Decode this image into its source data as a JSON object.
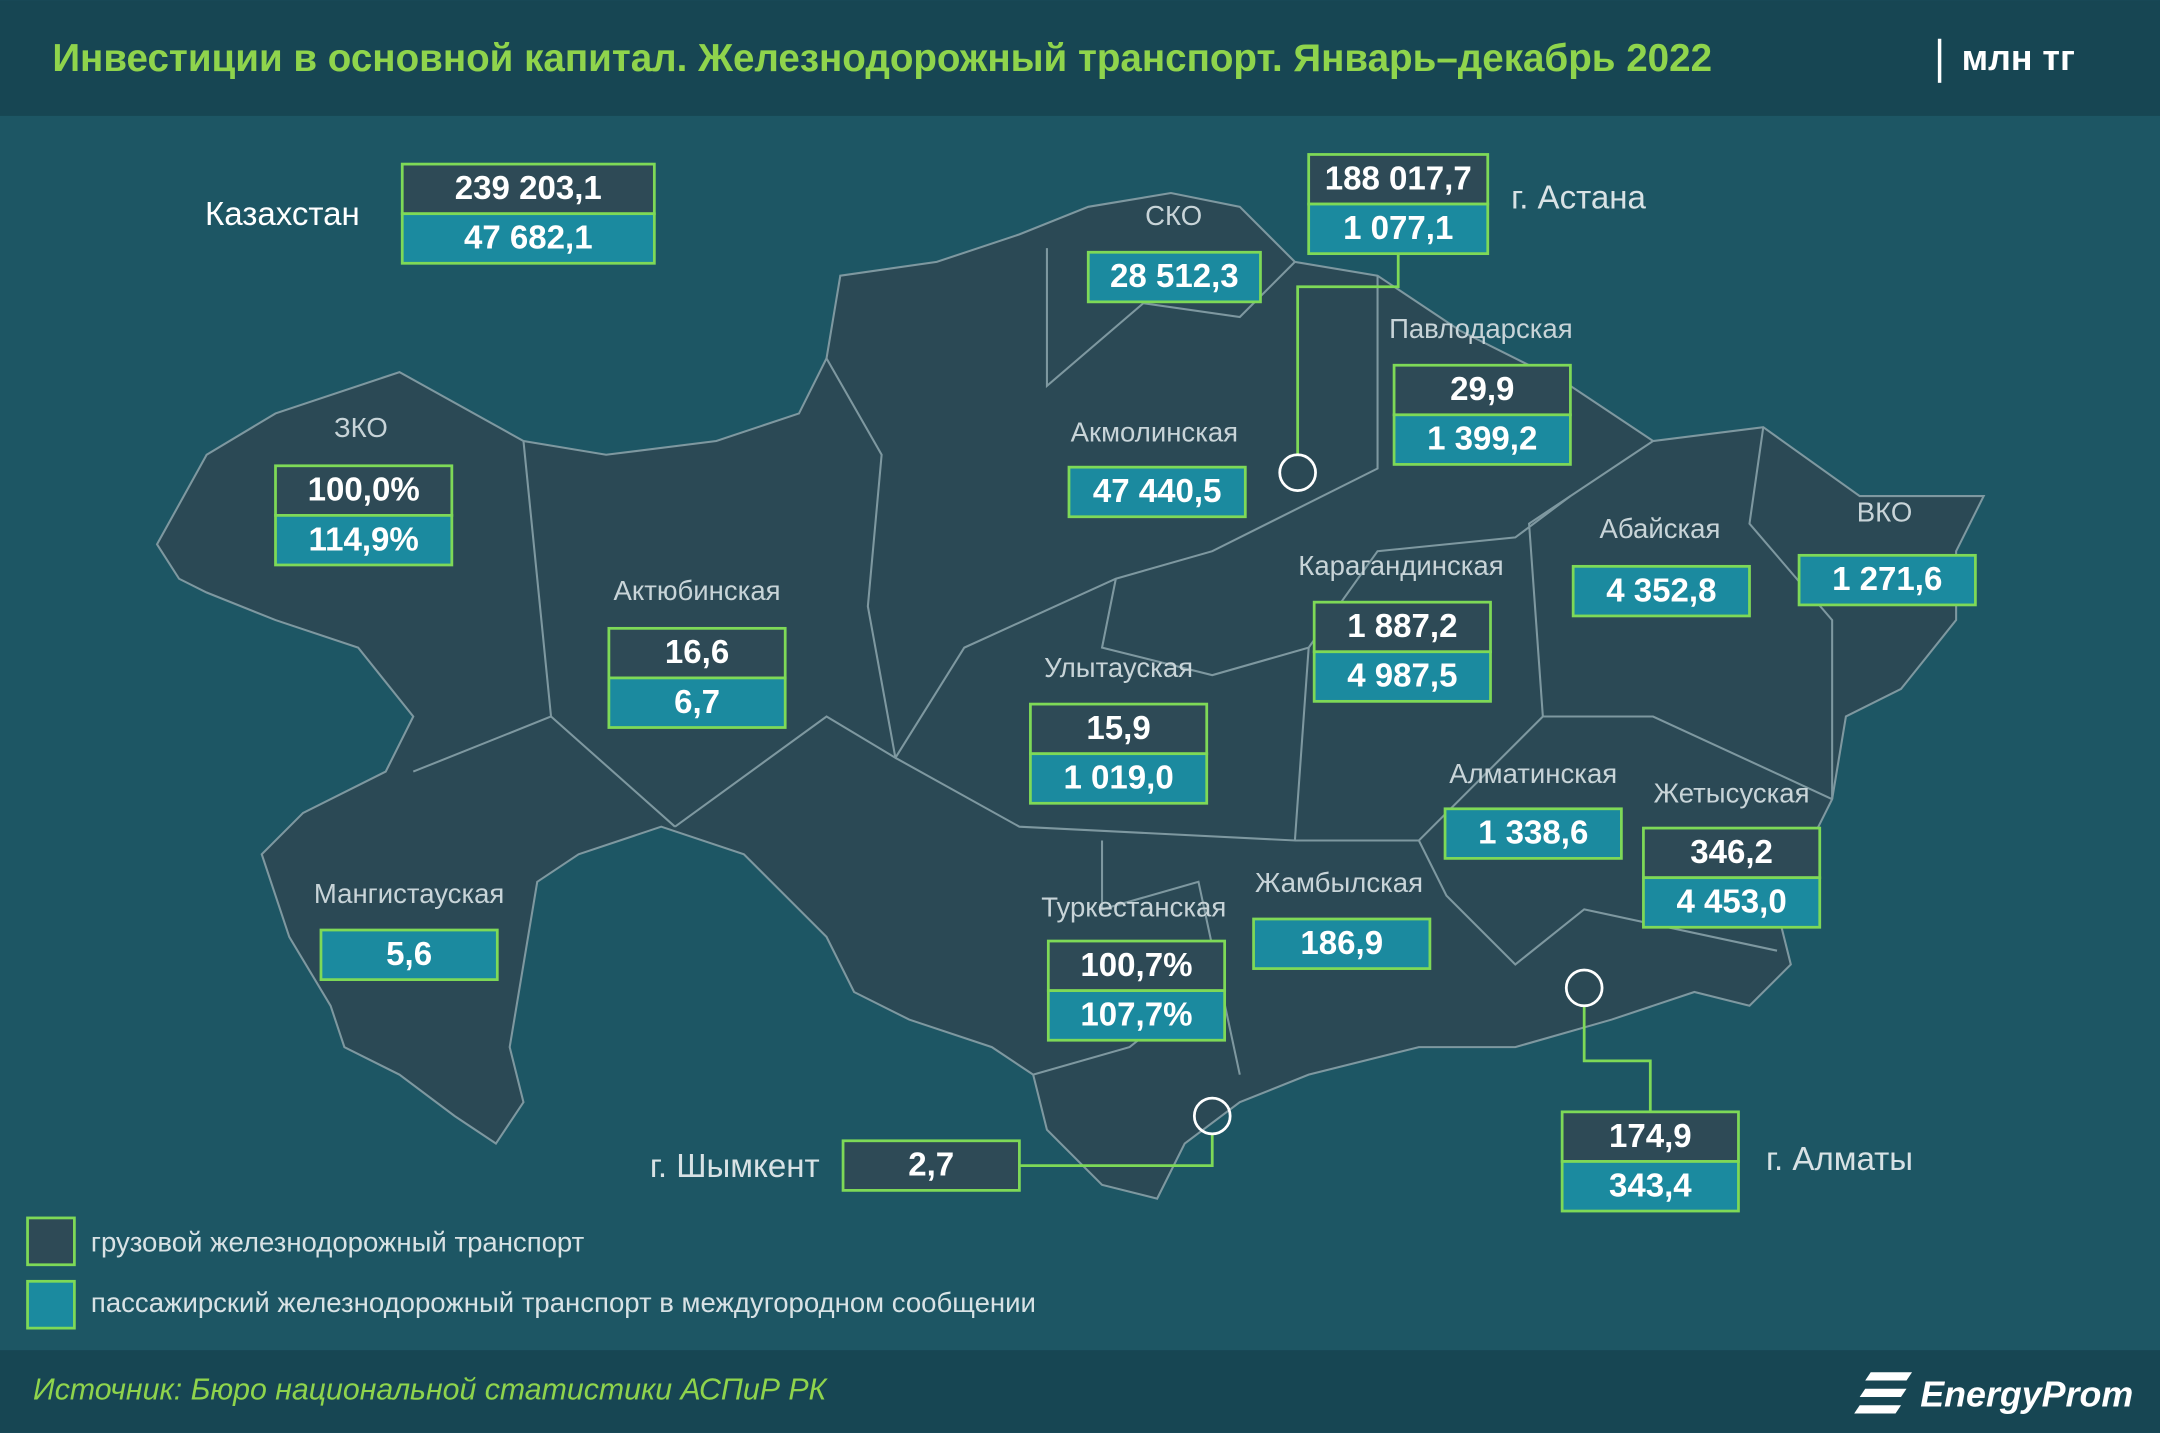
{
  "title": "Инвестиции в основной капитал. Железнодорожный транспорт. Январь–декабрь 2022",
  "unit": "млн тг",
  "regions": [
    {
      "name": "Казахстан",
      "cargo": "239 203,1",
      "passenger": "47 682,1"
    },
    {
      "name": "г. Астана",
      "cargo": "188 017,7",
      "passenger": "1 077,1"
    },
    {
      "name": "СКО",
      "passenger": "28 512,3"
    },
    {
      "name": "Павлодарская",
      "cargo": "29,9",
      "passenger": "1 399,2"
    },
    {
      "name": "ЗКО",
      "cargo": "100,0%",
      "passenger": "114,9%"
    },
    {
      "name": "Акмолинская",
      "passenger": "47 440,5"
    },
    {
      "name": "Актюбинская",
      "cargo": "16,6",
      "passenger": "6,7"
    },
    {
      "name": "Абайская",
      "passenger": "4 352,8"
    },
    {
      "name": "ВКО",
      "passenger": "1 271,6"
    },
    {
      "name": "Карагандинская",
      "cargo": "1 887,2",
      "passenger": "4 987,5"
    },
    {
      "name": "Улытауская",
      "cargo": "15,9",
      "passenger": "1 019,0"
    },
    {
      "name": "Алматинская",
      "passenger": "1 338,6"
    },
    {
      "name": "Жетысуская",
      "cargo": "346,2",
      "passenger": "4 453,0"
    },
    {
      "name": "Мангистауская",
      "passenger": "5,6"
    },
    {
      "name": "Жамбылская",
      "passenger": "186,9"
    },
    {
      "name": "Туркестанская",
      "cargo": "100,7%",
      "passenger": "107,7%"
    },
    {
      "name": "г. Шымкент",
      "cargo": "2,7"
    },
    {
      "name": "г. Алматы",
      "cargo": "174,9",
      "passenger": "343,4"
    }
  ],
  "legend": {
    "cargo": "грузовой железнодорожный транспорт",
    "passenger": "пассажирский железнодорожный транспорт в междугородном сообщении"
  },
  "source": "Источник: Бюро национальной статистики АСПиР РК",
  "logo": "EnergyProm"
}
